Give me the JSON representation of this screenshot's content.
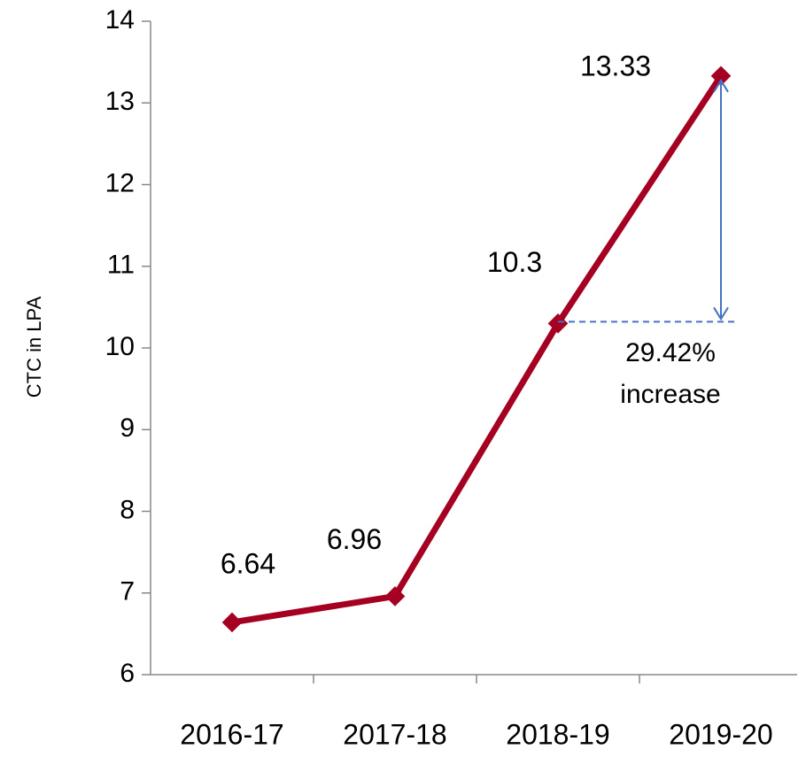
{
  "chart_data": {
    "type": "line",
    "y_axis_label": "CTC in LPA",
    "categories": [
      "2016-17",
      "2017-18",
      "2018-19",
      "2019-20"
    ],
    "series": [
      {
        "name": "CTC",
        "color": "#a50021",
        "values": [
          6.64,
          6.96,
          10.3,
          13.33
        ]
      }
    ],
    "ylim": [
      6,
      14
    ],
    "yticks": [
      6,
      7,
      8,
      9,
      10,
      11,
      12,
      13,
      14
    ],
    "annotation_lines": [
      "29.42%",
      "increase"
    ],
    "annotation_color": "#4472c4"
  }
}
